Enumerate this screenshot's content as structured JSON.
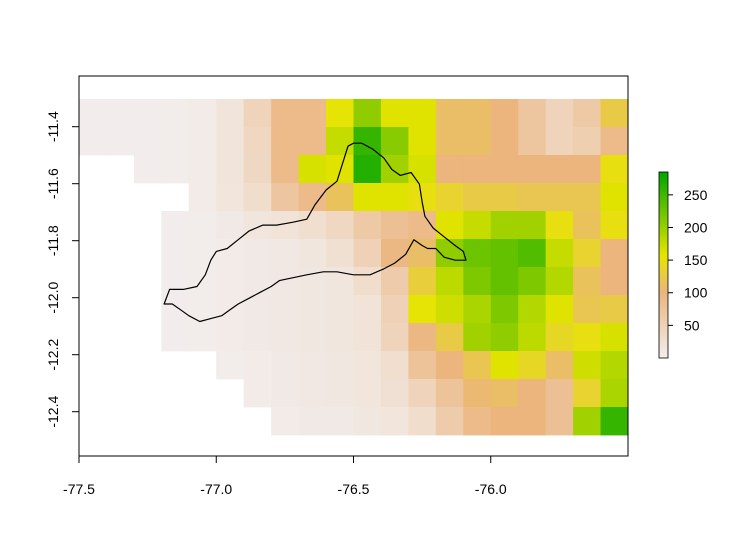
{
  "chart_data": {
    "type": "heatmap",
    "title": "",
    "xlabel": "",
    "ylabel": "",
    "xlim": [
      -77.5,
      -75.5
    ],
    "ylim": [
      -12.6,
      -11.3
    ],
    "x_ticks": [
      "-77.5",
      "-77.0",
      "-76.5",
      "-76.0"
    ],
    "x_tick_values": [
      -77.5,
      -77.0,
      -76.5,
      -76.0
    ],
    "y_ticks": [
      "-11.4",
      "-11.6",
      "-11.8",
      "-12.0",
      "-12.2",
      "-12.4"
    ],
    "y_tick_values": [
      -11.4,
      -11.6,
      -11.8,
      -12.0,
      -12.2,
      -12.4
    ],
    "grid": false,
    "raster": {
      "x_min": -77.5,
      "x_max": -75.5,
      "y_max": -11.3,
      "cols": 20,
      "rows": 12,
      "values": [
        [
          2,
          2,
          2,
          4,
          6,
          18,
          45,
          90,
          90,
          155,
          205,
          160,
          160,
          110,
          110,
          100,
          70,
          45,
          65,
          125
        ],
        [
          2,
          2,
          2,
          4,
          6,
          18,
          40,
          90,
          90,
          175,
          255,
          210,
          160,
          110,
          110,
          100,
          70,
          45,
          55,
          90
        ],
        [
          null,
          null,
          2,
          4,
          6,
          18,
          38,
          90,
          165,
          160,
          265,
          195,
          165,
          100,
          100,
          100,
          100,
          100,
          100,
          150
        ],
        [
          null,
          null,
          null,
          null,
          6,
          16,
          30,
          70,
          90,
          115,
          160,
          160,
          150,
          135,
          125,
          125,
          120,
          120,
          120,
          160
        ],
        [
          null,
          null,
          null,
          2,
          4,
          8,
          14,
          20,
          28,
          40,
          65,
          80,
          90,
          160,
          175,
          195,
          195,
          150,
          115,
          150
        ],
        [
          null,
          null,
          null,
          2,
          4,
          6,
          8,
          10,
          14,
          25,
          50,
          95,
          110,
          205,
          225,
          230,
          240,
          175,
          135,
          100
        ],
        [
          null,
          null,
          null,
          2,
          4,
          6,
          8,
          10,
          12,
          14,
          30,
          60,
          130,
          180,
          215,
          230,
          215,
          185,
          115,
          100
        ],
        [
          null,
          null,
          null,
          2,
          4,
          6,
          8,
          10,
          12,
          14,
          20,
          50,
          155,
          170,
          190,
          215,
          185,
          160,
          120,
          125
        ],
        [
          null,
          null,
          null,
          2,
          4,
          6,
          8,
          10,
          12,
          14,
          20,
          45,
          95,
          125,
          195,
          205,
          180,
          140,
          150,
          165
        ],
        [
          null,
          null,
          null,
          null,
          null,
          4,
          6,
          8,
          10,
          12,
          16,
          28,
          75,
          100,
          120,
          160,
          140,
          110,
          170,
          185
        ],
        [
          null,
          null,
          null,
          null,
          null,
          null,
          6,
          8,
          10,
          12,
          16,
          24,
          45,
          75,
          105,
          110,
          100,
          80,
          135,
          190
        ],
        [
          null,
          null,
          null,
          null,
          null,
          null,
          null,
          6,
          8,
          8,
          12,
          16,
          30,
          60,
          90,
          100,
          100,
          80,
          195,
          255
        ]
      ]
    },
    "legend": {
      "placement": "right",
      "min": 0,
      "max": 285,
      "ticks": [
        "50",
        "100",
        "150",
        "200",
        "250"
      ],
      "tick_values": [
        50,
        100,
        150,
        200,
        250
      ]
    },
    "colors": [
      "#f2eeee",
      "#ebb57e",
      "#e6e500",
      "#00a600"
    ],
    "color_stops": [
      0,
      0.35,
      0.55,
      1.0
    ],
    "boundary_color": "#000000",
    "boundary_outline_lonlat": [
      [
        -77.19,
        -12.08
      ],
      [
        -77.17,
        -12.03
      ],
      [
        -77.12,
        -12.03
      ],
      [
        -77.07,
        -12.02
      ],
      [
        -77.04,
        -11.98
      ],
      [
        -77.02,
        -11.93
      ],
      [
        -77.0,
        -11.9
      ],
      [
        -76.96,
        -11.89
      ],
      [
        -76.92,
        -11.86
      ],
      [
        -76.88,
        -11.83
      ],
      [
        -76.83,
        -11.81
      ],
      [
        -76.78,
        -11.81
      ],
      [
        -76.72,
        -11.8
      ],
      [
        -76.67,
        -11.79
      ],
      [
        -76.64,
        -11.74
      ],
      [
        -76.6,
        -11.69
      ],
      [
        -76.56,
        -11.66
      ],
      [
        -76.54,
        -11.6
      ],
      [
        -76.52,
        -11.54
      ],
      [
        -76.5,
        -11.53
      ],
      [
        -76.47,
        -11.53
      ],
      [
        -76.43,
        -11.55
      ],
      [
        -76.39,
        -11.58
      ],
      [
        -76.36,
        -11.62
      ],
      [
        -76.33,
        -11.64
      ],
      [
        -76.29,
        -11.63
      ],
      [
        -76.26,
        -11.67
      ],
      [
        -76.25,
        -11.73
      ],
      [
        -76.24,
        -11.78
      ],
      [
        -76.21,
        -11.82
      ],
      [
        -76.17,
        -11.85
      ],
      [
        -76.13,
        -11.88
      ],
      [
        -76.1,
        -11.9
      ],
      [
        -76.09,
        -11.93
      ],
      [
        -76.13,
        -11.93
      ],
      [
        -76.17,
        -11.92
      ],
      [
        -76.2,
        -11.89
      ],
      [
        -76.23,
        -11.89
      ],
      [
        -76.25,
        -11.88
      ],
      [
        -76.28,
        -11.86
      ],
      [
        -76.31,
        -11.91
      ],
      [
        -76.35,
        -11.94
      ],
      [
        -76.39,
        -11.96
      ],
      [
        -76.44,
        -11.98
      ],
      [
        -76.5,
        -11.98
      ],
      [
        -76.56,
        -11.97
      ],
      [
        -76.61,
        -11.97
      ],
      [
        -76.67,
        -11.98
      ],
      [
        -76.72,
        -11.99
      ],
      [
        -76.77,
        -12.0
      ],
      [
        -76.8,
        -12.02
      ],
      [
        -76.84,
        -12.04
      ],
      [
        -76.88,
        -12.06
      ],
      [
        -76.92,
        -12.08
      ],
      [
        -76.95,
        -12.1
      ],
      [
        -76.98,
        -12.12
      ],
      [
        -77.02,
        -12.13
      ],
      [
        -77.06,
        -12.14
      ],
      [
        -77.1,
        -12.12
      ],
      [
        -77.13,
        -12.1
      ],
      [
        -77.16,
        -12.08
      ],
      [
        -77.19,
        -12.08
      ]
    ]
  }
}
